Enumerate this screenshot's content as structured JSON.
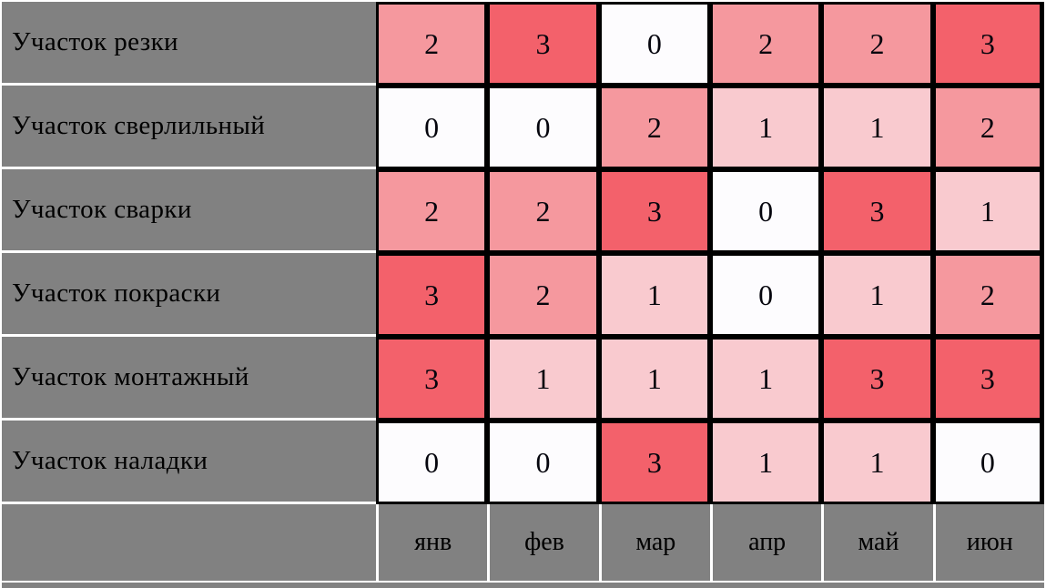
{
  "chart_data": {
    "type": "heatmap",
    "title": "",
    "columns": [
      "янв",
      "фев",
      "мар",
      "апр",
      "май",
      "июн"
    ],
    "rows": [
      {
        "label": "Участок резки",
        "values": [
          2,
          3,
          0,
          2,
          2,
          3
        ]
      },
      {
        "label": "Участок сверлильный",
        "values": [
          0,
          0,
          2,
          1,
          1,
          2
        ]
      },
      {
        "label": "Участок сварки",
        "values": [
          2,
          2,
          3,
          0,
          3,
          1
        ]
      },
      {
        "label": "Участок покраски",
        "values": [
          3,
          2,
          1,
          0,
          1,
          2
        ]
      },
      {
        "label": "Участок монтажный",
        "values": [
          3,
          1,
          1,
          1,
          3,
          3
        ]
      },
      {
        "label": "Участок наладки",
        "values": [
          0,
          0,
          3,
          1,
          1,
          0
        ]
      }
    ],
    "value_range": [
      0,
      3
    ],
    "color_scale": {
      "0": "#FDFCFE",
      "1": "#F9CACF",
      "2": "#F5989E",
      "3": "#F3616B"
    },
    "legend": "none",
    "layout": {
      "label_column_side": "left",
      "month_axis_side": "bottom",
      "panel_background": "#818181",
      "panel_separator_color": "#FFFFFF",
      "heatmap_border_color": "#000000",
      "text_color": "#000000"
    }
  }
}
